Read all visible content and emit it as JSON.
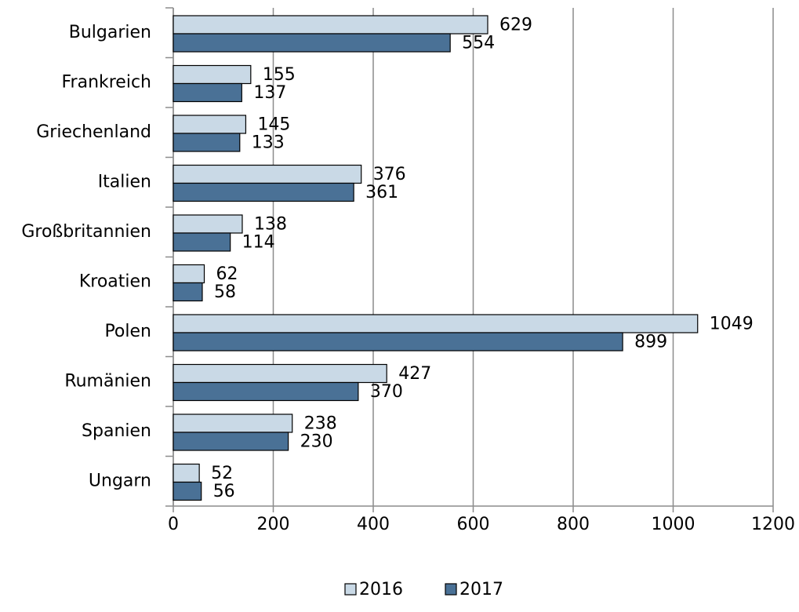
{
  "chart_data": {
    "type": "bar",
    "orientation": "horizontal",
    "categories": [
      "Bulgarien",
      "Frankreich",
      "Griechenland",
      "Italien",
      "Großbritannien",
      "Kroatien",
      "Polen",
      "Rumänien",
      "Spanien",
      "Ungarn"
    ],
    "series": [
      {
        "name": "2016",
        "color": "#c9d9e6",
        "values": [
          629,
          155,
          145,
          376,
          138,
          62,
          1049,
          427,
          238,
          52
        ]
      },
      {
        "name": "2017",
        "color": "#4a7196",
        "values": [
          554,
          137,
          133,
          361,
          114,
          58,
          899,
          370,
          230,
          56
        ]
      }
    ],
    "xlim": [
      0,
      1200
    ],
    "xticks": [
      0,
      200,
      400,
      600,
      800,
      1000,
      1200
    ],
    "grid": true,
    "legend": "bottom"
  }
}
